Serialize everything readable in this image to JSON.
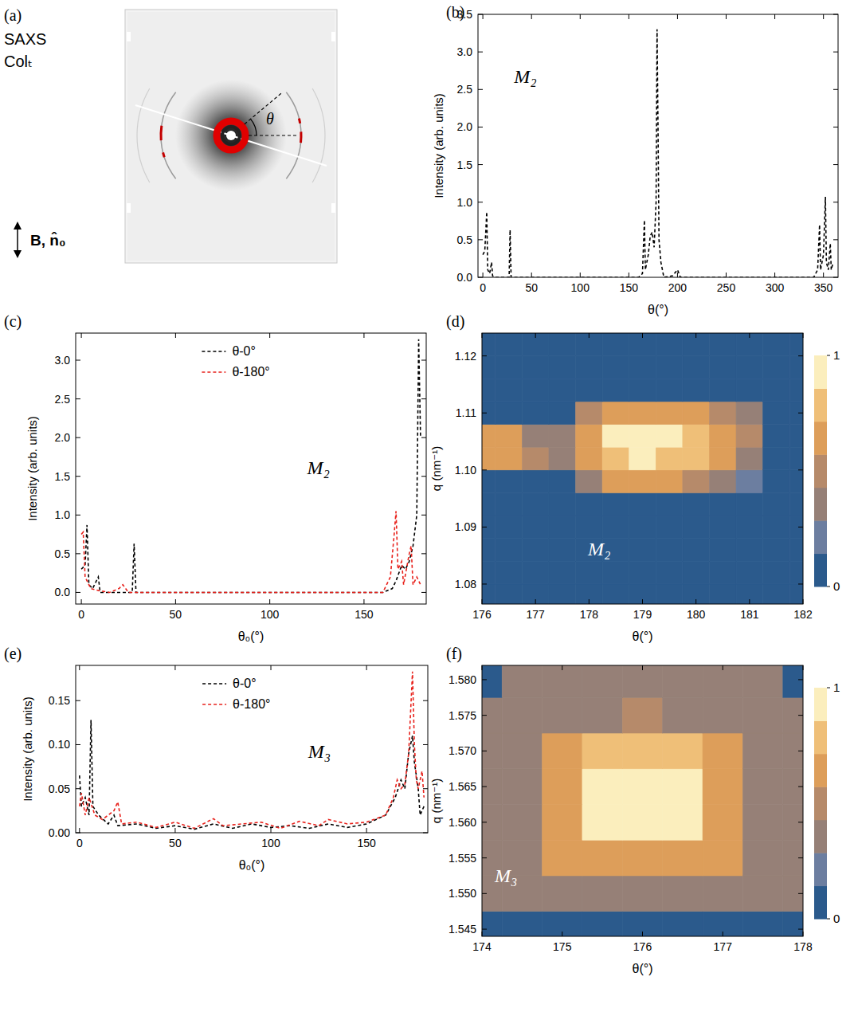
{
  "figure_a": {
    "panel": "(a)",
    "labels": [
      "SAXS",
      "Colₜ"
    ],
    "angle_label": "θ",
    "field_label": "B, n̂₀"
  },
  "chart_data": [
    {
      "panel": "(b)",
      "type": "line",
      "xlabel": "θ(°)",
      "ylabel": "Intensity (arb. units)",
      "annotation": "M₂",
      "xlim": [
        -5,
        365
      ],
      "ylim": [
        0,
        3.5
      ],
      "xticks": [
        0,
        50,
        100,
        150,
        200,
        250,
        300,
        350
      ],
      "yticks": [
        {
          "value": 0,
          "label": "0.0"
        },
        {
          "value": 0.5,
          "label": "0.5"
        },
        {
          "value": 1,
          "label": "1.0"
        },
        {
          "value": 1.5,
          "label": "1.5"
        },
        {
          "value": 2,
          "label": "2.0"
        },
        {
          "value": 2.5,
          "label": "2.5"
        },
        {
          "value": 3,
          "label": "3.0"
        },
        {
          "value": 3.5,
          "label": "3.5"
        }
      ],
      "series": [
        {
          "color": "#000000",
          "line_style": "dashed",
          "x": [
            0,
            2,
            4,
            5,
            7,
            9,
            10,
            12,
            27,
            28,
            29,
            40,
            100,
            160,
            164,
            166,
            167,
            170,
            172,
            174,
            176,
            178,
            179,
            180,
            181,
            183,
            186,
            195,
            200,
            203,
            250,
            300,
            340,
            344,
            346,
            347,
            350,
            352,
            353,
            355,
            357,
            358,
            360
          ],
          "values": [
            0.3,
            0.35,
            0.87,
            0.1,
            0.05,
            0.2,
            0.02,
            0,
            0,
            0.63,
            0,
            0,
            0,
            0,
            0.05,
            0.76,
            0.1,
            0.3,
            0.55,
            0.6,
            0.4,
            1.0,
            3.3,
            2.0,
            0.5,
            0.2,
            0,
            0.02,
            0.1,
            0,
            0,
            0,
            0,
            0.1,
            0.7,
            0.1,
            0.3,
            1.07,
            0.2,
            0.1,
            0.45,
            0.1,
            0.2
          ]
        }
      ]
    },
    {
      "panel": "(c)",
      "type": "line",
      "xlabel": "θ₀(°)",
      "ylabel": "Intensity (arb. units)",
      "annotation": "M₂",
      "legend": "top",
      "xlim": [
        -3,
        183
      ],
      "ylim": [
        -0.15,
        3.35
      ],
      "xticks": [
        0,
        50,
        100,
        150
      ],
      "yticks": [
        {
          "value": 0,
          "label": "0.0"
        },
        {
          "value": 0.5,
          "label": "0.5"
        },
        {
          "value": 1,
          "label": "1.0"
        },
        {
          "value": 1.5,
          "label": "1.5"
        },
        {
          "value": 2,
          "label": "2.0"
        },
        {
          "value": 2.5,
          "label": "2.5"
        },
        {
          "value": 3,
          "label": "3.0"
        }
      ],
      "series": [
        {
          "name": "θ-0°",
          "color": "#000000",
          "line_style": "dashed",
          "x": [
            0,
            2,
            3,
            4,
            6,
            9,
            10,
            27,
            28,
            29,
            60,
            120,
            160,
            165,
            167,
            170,
            172,
            174,
            176,
            178,
            179,
            180
          ],
          "values": [
            0.3,
            0.35,
            0.87,
            0.1,
            0.05,
            0.2,
            0,
            0,
            0.63,
            0,
            0,
            0,
            0,
            0.05,
            0.15,
            0.35,
            0.3,
            0.4,
            0.6,
            1.0,
            3.27,
            2.0
          ]
        },
        {
          "name": "θ-180°",
          "color": "#e8221c",
          "line_style": "dashed",
          "x": [
            0,
            1,
            2,
            5,
            10,
            15,
            20,
            22,
            25,
            60,
            120,
            160,
            164,
            166,
            167,
            168,
            170,
            171,
            174,
            175,
            176,
            178,
            180
          ],
          "values": [
            0.75,
            0.78,
            0.2,
            0.05,
            0.02,
            0,
            0.05,
            0.1,
            0,
            0,
            0,
            0,
            0.2,
            0.75,
            1.05,
            0.3,
            0.4,
            0.1,
            0.5,
            0.6,
            0.1,
            0.2,
            0.1
          ]
        }
      ]
    },
    {
      "panel": "(d)",
      "type": "heatmap",
      "xlabel": "θ(°)",
      "ylabel": "q (nm⁻¹)",
      "annotation": "M₂",
      "xlim": [
        176,
        182
      ],
      "ylim": [
        1.0765,
        1.124
      ],
      "xticks": [
        176,
        177,
        178,
        179,
        180,
        181,
        182
      ],
      "yticks": [
        1.08,
        1.09,
        {
          "value": 1.1,
          "label": "1.10"
        },
        1.11,
        1.12
      ],
      "x": [
        176,
        176.5,
        177,
        177.5,
        178,
        178.5,
        179,
        179.5,
        180,
        180.5,
        181,
        181.5,
        182
      ],
      "y": [
        1.078,
        1.082,
        1.086,
        1.09,
        1.094,
        1.098,
        1.102,
        1.106,
        1.11,
        1.114,
        1.118,
        1.122
      ],
      "cells": [
        [
          0,
          0,
          0,
          0,
          0,
          0,
          0,
          0,
          0,
          0,
          0,
          0,
          0
        ],
        [
          0,
          0,
          0,
          0,
          0,
          0,
          0,
          0,
          0,
          0,
          0,
          0,
          0
        ],
        [
          0,
          0,
          0,
          0,
          0,
          0,
          0,
          0,
          0,
          0,
          0,
          0,
          0
        ],
        [
          0,
          0,
          0,
          0,
          0,
          0,
          0,
          0,
          0,
          0,
          0,
          0,
          0
        ],
        [
          0,
          0,
          0,
          0,
          0,
          0,
          0,
          0,
          0,
          0,
          0,
          0,
          0
        ],
        [
          0,
          0,
          0,
          0,
          0.3,
          0.6,
          0.6,
          0.6,
          0.5,
          0.4,
          0.2,
          0,
          0
        ],
        [
          0.6,
          0.6,
          0.5,
          0.3,
          0.6,
          0.85,
          0.9,
          0.85,
          0.75,
          0.6,
          0.4,
          0,
          0
        ],
        [
          0.6,
          0.6,
          0.4,
          0.3,
          0.65,
          0.9,
          1.0,
          0.9,
          0.8,
          0.65,
          0.45,
          0,
          0
        ],
        [
          0,
          0,
          0,
          0,
          0.5,
          0.7,
          0.7,
          0.65,
          0.6,
          0.5,
          0.3,
          0,
          0
        ],
        [
          0,
          0,
          0,
          0,
          0,
          0,
          0,
          0,
          0,
          0,
          0,
          0,
          0
        ],
        [
          0,
          0,
          0,
          0,
          0,
          0,
          0,
          0,
          0,
          0,
          0,
          0,
          0
        ],
        [
          0,
          0,
          0,
          0,
          0,
          0,
          0,
          0,
          0,
          0,
          0,
          0,
          0
        ]
      ],
      "colorbar": {
        "range": [
          0,
          1
        ],
        "ticks": [
          0,
          1
        ],
        "colors": [
          "#2b5a8c",
          "#6c7ea0",
          "#968077",
          "#b68a6a",
          "#dd9e5a",
          "#efbf78",
          "#fbeebd"
        ]
      }
    },
    {
      "panel": "(e)",
      "type": "line",
      "xlabel": "θ₀(°)",
      "ylabel": "Intensity (arb. units)",
      "annotation": "M₃",
      "legend": "top",
      "xlim": [
        -2,
        182
      ],
      "ylim": [
        0,
        0.19
      ],
      "xticks": [
        0,
        50,
        100,
        150
      ],
      "yticks": [
        {
          "value": 0,
          "label": "0.00"
        },
        0.05,
        {
          "value": 0.1,
          "label": "0.10"
        },
        0.15
      ],
      "series": [
        {
          "name": "θ-0°",
          "color": "#000000",
          "line_style": "dashed",
          "x": [
            0,
            1,
            3,
            5,
            6,
            7,
            10,
            15,
            18,
            20,
            30,
            40,
            50,
            60,
            70,
            80,
            90,
            100,
            110,
            120,
            130,
            140,
            150,
            160,
            165,
            168,
            170,
            172,
            174,
            175,
            177,
            178,
            180
          ],
          "values": [
            0.065,
            0.03,
            0.04,
            0.02,
            0.128,
            0.03,
            0.02,
            0.01,
            0.02,
            0.008,
            0.01,
            0.005,
            0.008,
            0.004,
            0.01,
            0.005,
            0.01,
            0.006,
            0.008,
            0.005,
            0.01,
            0.006,
            0.01,
            0.02,
            0.04,
            0.06,
            0.05,
            0.09,
            0.11,
            0.08,
            0.05,
            0.02,
            0.03
          ]
        },
        {
          "name": "θ-180°",
          "color": "#e8221c",
          "line_style": "dashed",
          "x": [
            0,
            1,
            3,
            5,
            8,
            12,
            18,
            20,
            22,
            30,
            40,
            50,
            60,
            70,
            75,
            85,
            95,
            105,
            115,
            125,
            130,
            140,
            150,
            160,
            164,
            166,
            168,
            170,
            172,
            174,
            175,
            176,
            177,
            179,
            180
          ],
          "values": [
            0.03,
            0.045,
            0.02,
            0.04,
            0.02,
            0.015,
            0.025,
            0.035,
            0.01,
            0.012,
            0.006,
            0.012,
            0.005,
            0.016,
            0.008,
            0.01,
            0.012,
            0.005,
            0.013,
            0.008,
            0.015,
            0.01,
            0.012,
            0.02,
            0.04,
            0.06,
            0.05,
            0.055,
            0.09,
            0.183,
            0.1,
            0.06,
            0.05,
            0.07,
            0.04
          ]
        }
      ]
    },
    {
      "panel": "(f)",
      "type": "heatmap",
      "xlabel": "θ(°)",
      "ylabel": "q (nm⁻¹)",
      "annotation": "M₃",
      "xlim": [
        174,
        178
      ],
      "ylim": [
        1.544,
        1.582
      ],
      "xticks": [
        174,
        175,
        176,
        177,
        178
      ],
      "yticks": [
        1.545,
        {
          "value": 1.55,
          "label": "1.550"
        },
        1.555,
        {
          "value": 1.56,
          "label": "1.560"
        },
        1.565,
        {
          "value": 1.57,
          "label": "1.570"
        },
        1.575,
        {
          "value": 1.58,
          "label": "1.580"
        }
      ],
      "x": [
        174,
        174.5,
        175,
        175.5,
        176,
        176.5,
        177,
        177.5,
        178
      ],
      "y": [
        1.545,
        1.55,
        1.555,
        1.56,
        1.565,
        1.57,
        1.575,
        1.58
      ],
      "cells": [
        [
          0.1,
          0.1,
          0.1,
          0.1,
          0.1,
          0.1,
          0.1,
          0.1,
          0.1
        ],
        [
          0.35,
          0.35,
          0.4,
          0.4,
          0.4,
          0.4,
          0.4,
          0.35,
          0.35
        ],
        [
          0.35,
          0.4,
          0.6,
          0.7,
          0.7,
          0.7,
          0.6,
          0.4,
          0.35
        ],
        [
          0.35,
          0.4,
          0.7,
          0.9,
          0.95,
          0.9,
          0.7,
          0.4,
          0.35
        ],
        [
          0.35,
          0.4,
          0.7,
          0.9,
          1.0,
          0.9,
          0.7,
          0.4,
          0.35
        ],
        [
          0.35,
          0.4,
          0.6,
          0.75,
          0.8,
          0.75,
          0.6,
          0.4,
          0.35
        ],
        [
          0.35,
          0.35,
          0.4,
          0.4,
          0.45,
          0.4,
          0.4,
          0.35,
          0.35
        ],
        [
          0.1,
          0.35,
          0.35,
          0.35,
          0.35,
          0.35,
          0.35,
          0.35,
          0.1
        ]
      ],
      "colorbar": {
        "range": [
          0,
          1
        ],
        "ticks": [
          0,
          1
        ],
        "colors": [
          "#2b5a8c",
          "#6c7ea0",
          "#968077",
          "#b68a6a",
          "#dd9e5a",
          "#efbf78",
          "#fbeebd"
        ]
      }
    }
  ]
}
